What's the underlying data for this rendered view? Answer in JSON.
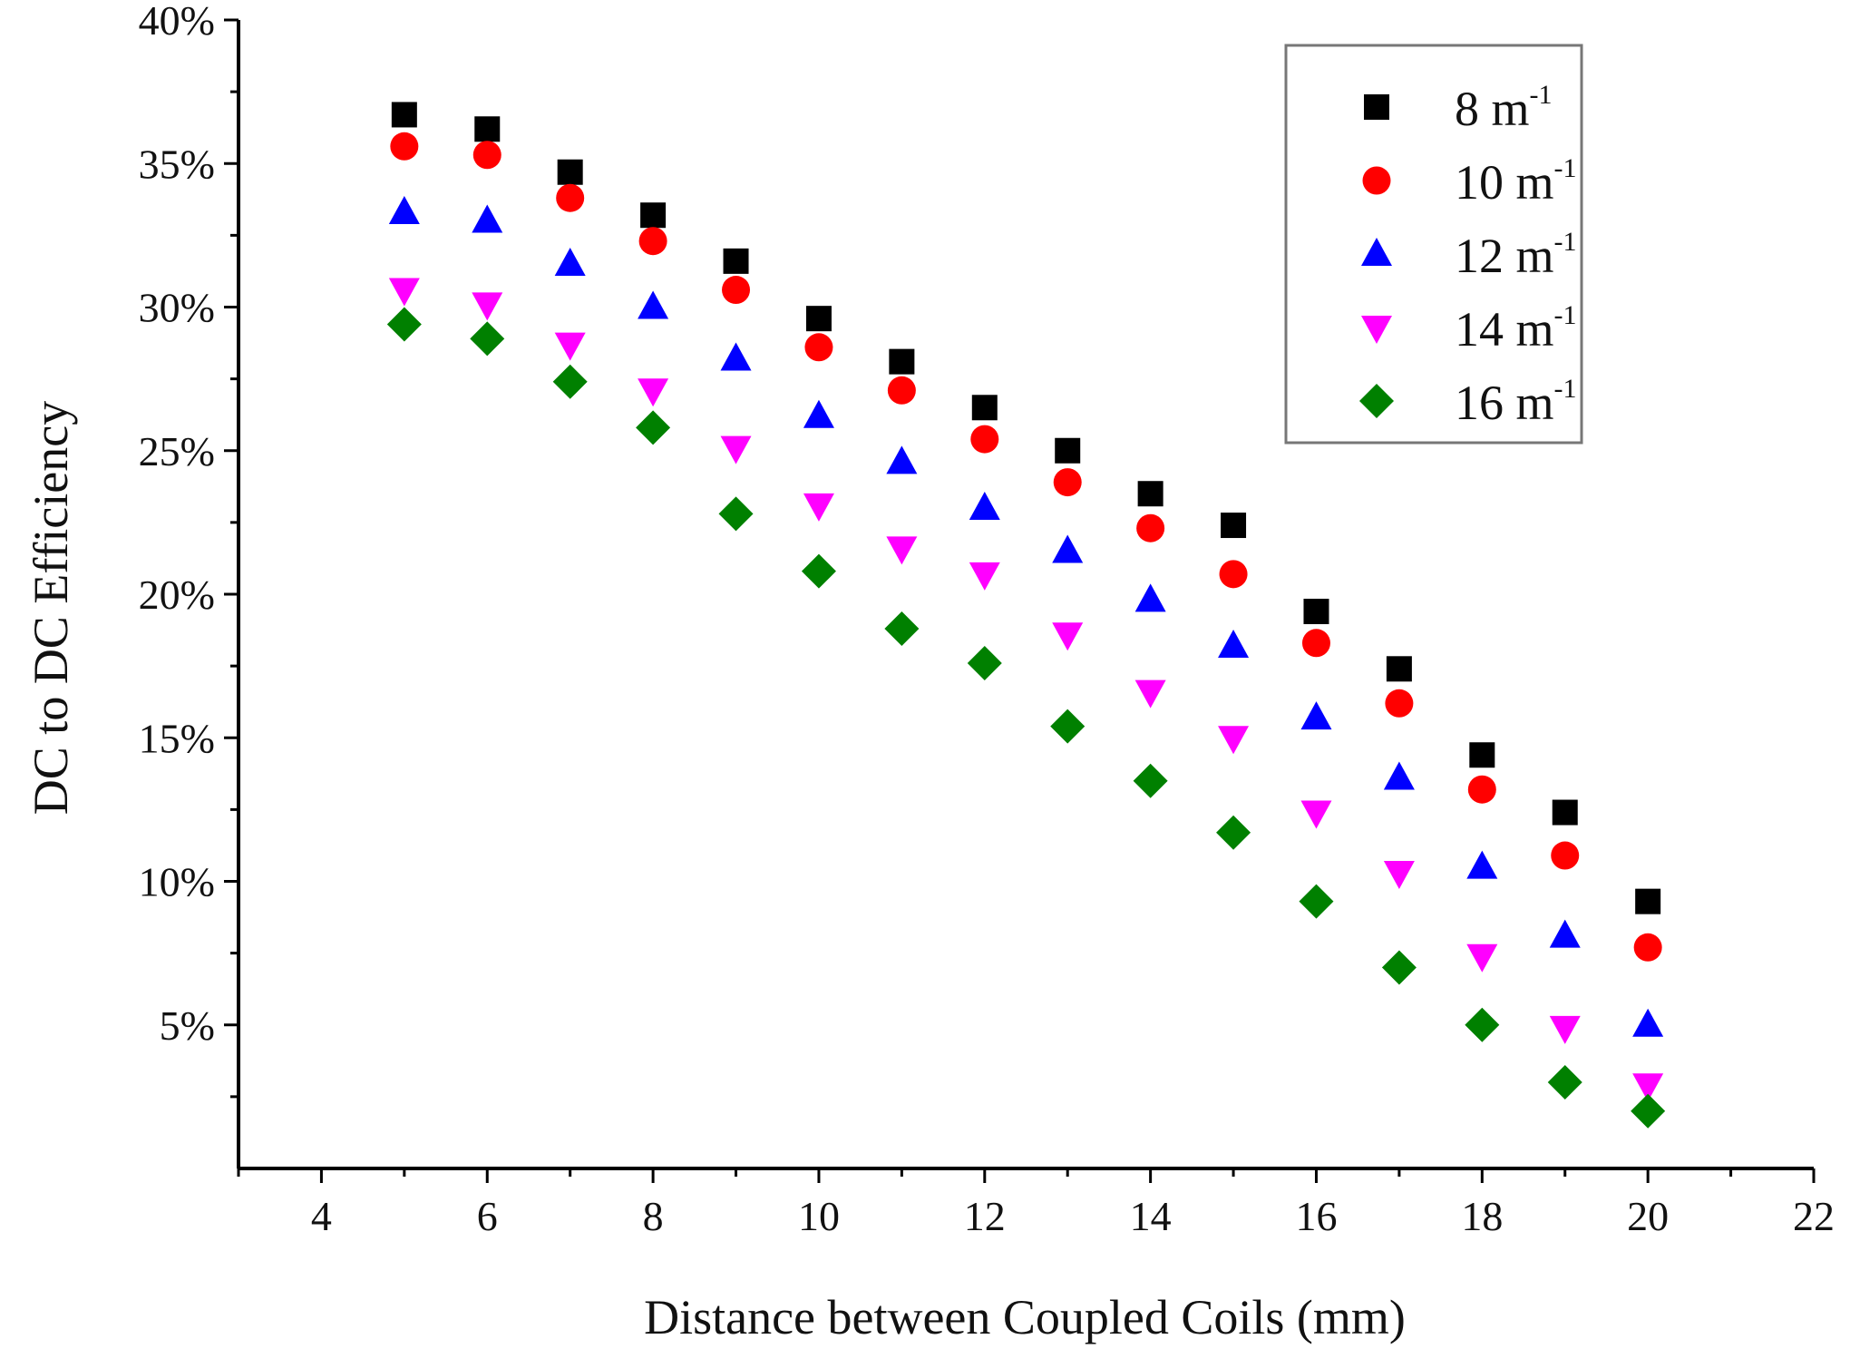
{
  "chart_data": {
    "type": "scatter",
    "title": "",
    "xlabel": "Distance between Coupled Coils (mm)",
    "ylabel": "DC to DC Efficiency",
    "xlim": [
      3,
      22
    ],
    "ylim": [
      0,
      40
    ],
    "x_ticks": [
      4,
      6,
      8,
      10,
      12,
      14,
      16,
      18,
      20,
      22
    ],
    "x_tick_labels": [
      "4",
      "6",
      "8",
      "10",
      "12",
      "14",
      "16",
      "18",
      "20",
      "22"
    ],
    "y_ticks": [
      5,
      10,
      15,
      20,
      25,
      30,
      35,
      40
    ],
    "y_tick_labels": [
      "5%",
      "10%",
      "15%",
      "20%",
      "25%",
      "30%",
      "35%",
      "40%"
    ],
    "grid": false,
    "legend_position": "top-right",
    "x": [
      5,
      6,
      7,
      8,
      9,
      10,
      11,
      12,
      13,
      14,
      15,
      16,
      17,
      18,
      19,
      20
    ],
    "series": [
      {
        "name": "8 m",
        "sup": "-1",
        "marker": "square",
        "color": "#000000",
        "values": [
          36.7,
          36.2,
          34.7,
          33.2,
          31.6,
          29.6,
          28.1,
          26.5,
          25.0,
          23.5,
          22.4,
          19.4,
          17.4,
          14.4,
          12.4,
          9.3
        ]
      },
      {
        "name": "10 m",
        "sup": "-1",
        "marker": "circle",
        "color": "#ff0000",
        "values": [
          35.6,
          35.3,
          33.8,
          32.3,
          30.6,
          28.6,
          27.1,
          25.4,
          23.9,
          22.3,
          20.7,
          18.3,
          16.2,
          13.2,
          10.9,
          7.7
        ]
      },
      {
        "name": "12 m",
        "sup": "-1",
        "marker": "triangle-up",
        "color": "#0000ff",
        "values": [
          33.3,
          33.0,
          31.5,
          30.0,
          28.2,
          26.2,
          24.6,
          23.0,
          21.5,
          19.8,
          18.2,
          15.7,
          13.6,
          10.5,
          8.1,
          5.0
        ]
      },
      {
        "name": "14 m",
        "sup": "-1",
        "marker": "triangle-down",
        "color": "#ff00ff",
        "values": [
          30.6,
          30.1,
          28.7,
          27.1,
          25.1,
          23.1,
          21.6,
          20.7,
          18.6,
          16.6,
          15.0,
          12.4,
          10.3,
          7.4,
          4.9,
          2.9
        ]
      },
      {
        "name": "16 m",
        "sup": "-1",
        "marker": "diamond",
        "color": "#008000",
        "values": [
          29.4,
          28.9,
          27.4,
          25.8,
          22.8,
          20.8,
          18.8,
          17.6,
          15.4,
          13.5,
          11.7,
          9.3,
          7.0,
          5.0,
          3.0,
          2.0
        ]
      }
    ]
  }
}
